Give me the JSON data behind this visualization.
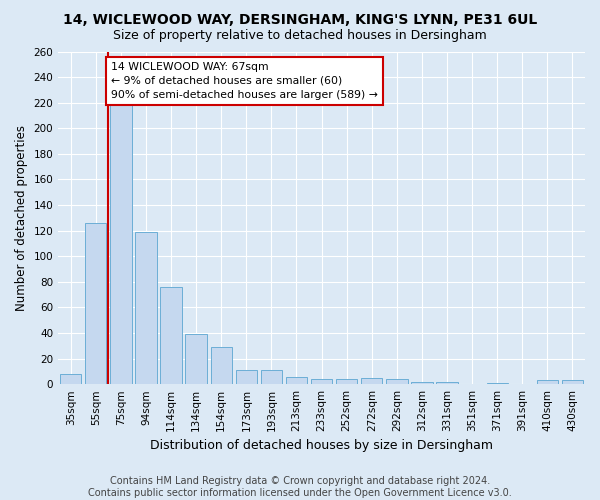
{
  "title1": "14, WICLEWOOD WAY, DERSINGHAM, KING'S LYNN, PE31 6UL",
  "title2": "Size of property relative to detached houses in Dersingham",
  "xlabel": "Distribution of detached houses by size in Dersingham",
  "ylabel": "Number of detached properties",
  "categories": [
    "35sqm",
    "55sqm",
    "75sqm",
    "94sqm",
    "114sqm",
    "134sqm",
    "154sqm",
    "173sqm",
    "193sqm",
    "213sqm",
    "233sqm",
    "252sqm",
    "272sqm",
    "292sqm",
    "312sqm",
    "331sqm",
    "351sqm",
    "371sqm",
    "391sqm",
    "410sqm",
    "430sqm"
  ],
  "values": [
    8,
    126,
    218,
    119,
    76,
    39,
    29,
    11,
    11,
    6,
    4,
    4,
    5,
    4,
    2,
    2,
    0,
    1,
    0,
    3,
    3
  ],
  "bar_color": "#c5d8ef",
  "bar_edge_color": "#6baed6",
  "vline_x": 1.5,
  "vline_color": "#cc0000",
  "annotation_text": "14 WICLEWOOD WAY: 67sqm\n← 9% of detached houses are smaller (60)\n90% of semi-detached houses are larger (589) →",
  "annotation_box_color": "#ffffff",
  "annotation_box_edge": "#cc0000",
  "ylim": [
    0,
    260
  ],
  "yticks": [
    0,
    20,
    40,
    60,
    80,
    100,
    120,
    140,
    160,
    180,
    200,
    220,
    240,
    260
  ],
  "footnote": "Contains HM Land Registry data © Crown copyright and database right 2024.\nContains public sector information licensed under the Open Government Licence v3.0.",
  "bg_color": "#dce9f5",
  "plot_bg_color": "#dce9f5",
  "grid_color": "#ffffff",
  "title_fontsize": 10,
  "subtitle_fontsize": 9,
  "tick_fontsize": 7.5,
  "ylabel_fontsize": 8.5,
  "xlabel_fontsize": 9,
  "footnote_fontsize": 7
}
